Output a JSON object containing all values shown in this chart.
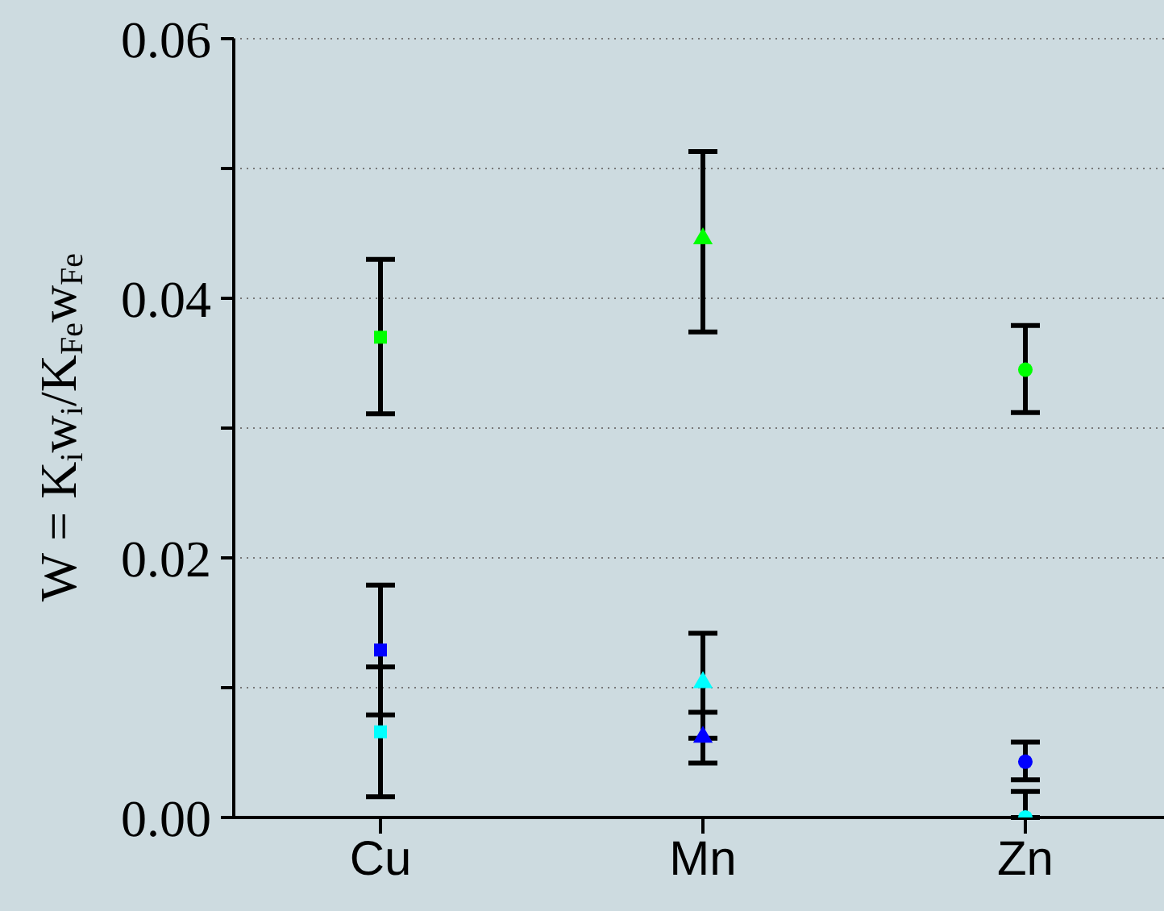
{
  "chart_data": {
    "type": "scatter",
    "ylabel": "W = K$_{i}$w$_{i}$/K$_{Fe}$w$_{Fe}$",
    "categories": [
      "Cu",
      "Mn",
      "Zn"
    ],
    "ylim": [
      0,
      0.06
    ],
    "yticks": [
      {
        "value": 0,
        "label": "0.00"
      },
      {
        "value": 0.01,
        "label": null
      },
      {
        "value": 0.02,
        "label": "0.02"
      },
      {
        "value": 0.03,
        "label": null
      },
      {
        "value": 0.04,
        "label": "0.04"
      },
      {
        "value": 0.05,
        "label": null
      },
      {
        "value": 0.06,
        "label": "0.06"
      }
    ],
    "grid": "y",
    "series": [
      {
        "color": "#00ff00",
        "marker": "square",
        "x": [
          "Cu"
        ],
        "values": [
          0.037
        ],
        "errors": [
          [
            0.0311,
            0.043
          ]
        ]
      },
      {
        "color": "#0000ff",
        "marker": "square",
        "x": [
          "Cu"
        ],
        "values": [
          0.0129
        ],
        "errors": [
          [
            0.0079,
            0.0179
          ]
        ]
      },
      {
        "color": "#00ffff",
        "marker": "square",
        "x": [
          "Cu"
        ],
        "values": [
          0.0066
        ],
        "errors": [
          [
            0.0016,
            0.0116
          ]
        ]
      },
      {
        "color": "#00ff00",
        "marker": "triangle",
        "x": [
          "Mn"
        ],
        "values": [
          0.0446
        ],
        "errors": [
          [
            0.0374,
            0.0513
          ]
        ]
      },
      {
        "color": "#00ffff",
        "marker": "triangle",
        "x": [
          "Mn"
        ],
        "values": [
          0.0104
        ],
        "errors": [
          [
            0.0061,
            0.0142
          ]
        ]
      },
      {
        "color": "#0000ff",
        "marker": "triangle",
        "x": [
          "Mn"
        ],
        "values": [
          0.0062
        ],
        "errors": [
          [
            0.0042,
            0.0081
          ]
        ]
      },
      {
        "color": "#00ff00",
        "marker": "circle",
        "x": [
          "Zn"
        ],
        "values": [
          0.0345
        ],
        "errors": [
          [
            0.0312,
            0.0379
          ]
        ]
      },
      {
        "color": "#0000ff",
        "marker": "circle",
        "x": [
          "Zn"
        ],
        "values": [
          0.0043
        ],
        "errors": [
          [
            0.0029,
            0.0058
          ]
        ]
      },
      {
        "color": "#00ffff",
        "marker": "circle",
        "x": [
          "Zn"
        ],
        "values": [
          0.0
        ],
        "errors": [
          [
            0.0,
            0.002
          ]
        ]
      }
    ]
  }
}
